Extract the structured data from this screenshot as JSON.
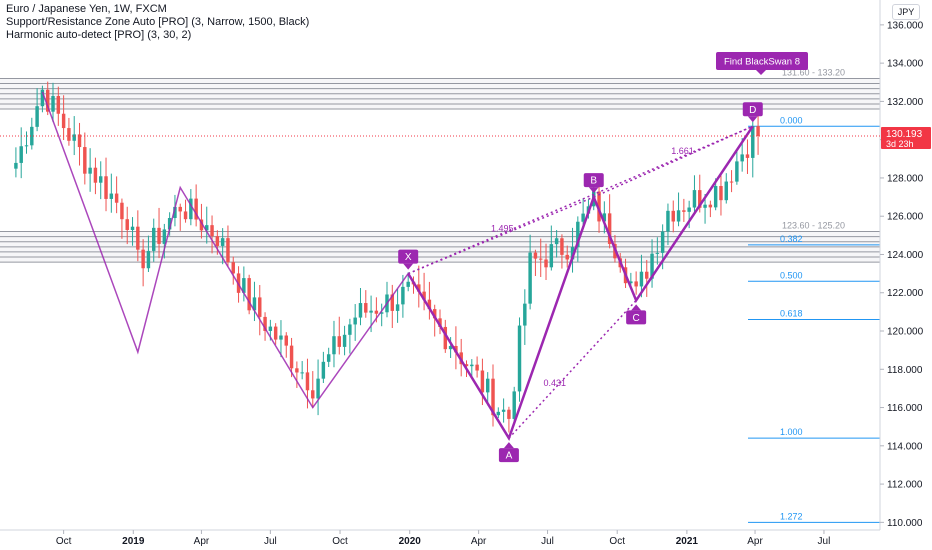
{
  "legend": {
    "symbol": "Euro / Japanese Yen, 1W, FXCM",
    "indicator1": "Support/Resistance Zone Auto [PRO] (3, Narrow, 1500, Black)",
    "indicator2": "Harmonic auto-detect [PRO] (3, 30, 2)"
  },
  "currency_badge": "JPY",
  "colors": {
    "up": "#26a69a",
    "down": "#ef5350",
    "pattern": "#9c27b0",
    "fib": "#2196f3",
    "zone": "#787b86",
    "price_tag": "#f23645"
  },
  "chart_data": {
    "type": "candlestick",
    "ylim": [
      109.6,
      137.3
    ],
    "y_ticks": [
      "136.000",
      "134.000",
      "132.000",
      "130.000",
      "128.000",
      "126.000",
      "124.000",
      "122.000",
      "120.000",
      "118.000",
      "116.000",
      "114.000",
      "112.000",
      "110.000"
    ],
    "x_ticks": [
      "Oct",
      "2019",
      "Apr",
      "Jul",
      "Oct",
      "2020",
      "Apr",
      "Jul",
      "Oct",
      "2021",
      "Apr",
      "Jul"
    ],
    "x_tick_bold": [
      false,
      true,
      false,
      false,
      false,
      true,
      false,
      false,
      false,
      true,
      false,
      false
    ],
    "last_price": "130.193",
    "countdown": "3d 23h",
    "zone_labels": [
      "131.60 - 133.20",
      "123.60 - 125.20"
    ],
    "zones": [
      {
        "low": 131.6,
        "high": 133.2,
        "label_index": 0
      },
      {
        "low": 123.6,
        "high": 125.2,
        "label_index": 1
      }
    ],
    "harmonic_points": [
      {
        "name": "X",
        "value": 123.0
      },
      {
        "name": "A",
        "value": 114.4
      },
      {
        "name": "B",
        "value": 127.0
      },
      {
        "name": "C",
        "value": 121.6
      },
      {
        "name": "D",
        "value": 130.7
      }
    ],
    "harmonic_ratios": [
      "0.431",
      "1.495",
      "1.661"
    ],
    "fib_levels": [
      {
        "ratio": "0.000",
        "value": 130.7
      },
      {
        "ratio": "0.382",
        "value": 124.5
      },
      {
        "ratio": "0.500",
        "value": 122.6
      },
      {
        "ratio": "0.618",
        "value": 120.6
      },
      {
        "ratio": "1.000",
        "value": 114.4
      },
      {
        "ratio": "1.272",
        "value": 110.0
      }
    ],
    "prior_pattern": [
      {
        "date": "2018-09-03",
        "value": 132.5
      },
      {
        "date": "2019-01-07",
        "value": 118.9
      },
      {
        "date": "2019-03-04",
        "value": 127.5
      },
      {
        "date": "2019-08-26",
        "value": 116.0
      },
      {
        "date": "2019-12-30",
        "value": 123.0
      }
    ],
    "banner": "Find BlackSwan 8",
    "ohlc_keypoints": [
      {
        "date": "2018-07-30",
        "close": 128.8
      },
      {
        "date": "2018-09-03",
        "close": 132.6
      },
      {
        "date": "2018-10-29",
        "close": 128.9
      },
      {
        "date": "2018-12-24",
        "close": 126.0
      },
      {
        "date": "2019-01-07",
        "close": 123.5
      },
      {
        "date": "2019-03-04",
        "close": 126.6
      },
      {
        "date": "2019-04-22",
        "close": 125.0
      },
      {
        "date": "2019-06-03",
        "close": 121.5
      },
      {
        "date": "2019-08-26",
        "close": 117.2
      },
      {
        "date": "2019-10-21",
        "close": 120.8
      },
      {
        "date": "2019-12-30",
        "close": 122.0
      },
      {
        "date": "2020-02-24",
        "close": 119.5
      },
      {
        "date": "2020-04-27",
        "close": 116.0
      },
      {
        "date": "2020-05-11",
        "close": 115.5
      },
      {
        "date": "2020-06-08",
        "close": 123.5
      },
      {
        "date": "2020-07-27",
        "close": 124.5
      },
      {
        "date": "2020-08-31",
        "close": 126.7
      },
      {
        "date": "2020-10-05",
        "close": 124.0
      },
      {
        "date": "2020-10-26",
        "close": 121.8
      },
      {
        "date": "2020-12-07",
        "close": 126.3
      },
      {
        "date": "2021-02-15",
        "close": 127.5
      },
      {
        "date": "2021-03-29",
        "close": 130.3
      },
      {
        "date": "2021-04-05",
        "close": 130.2
      }
    ]
  }
}
